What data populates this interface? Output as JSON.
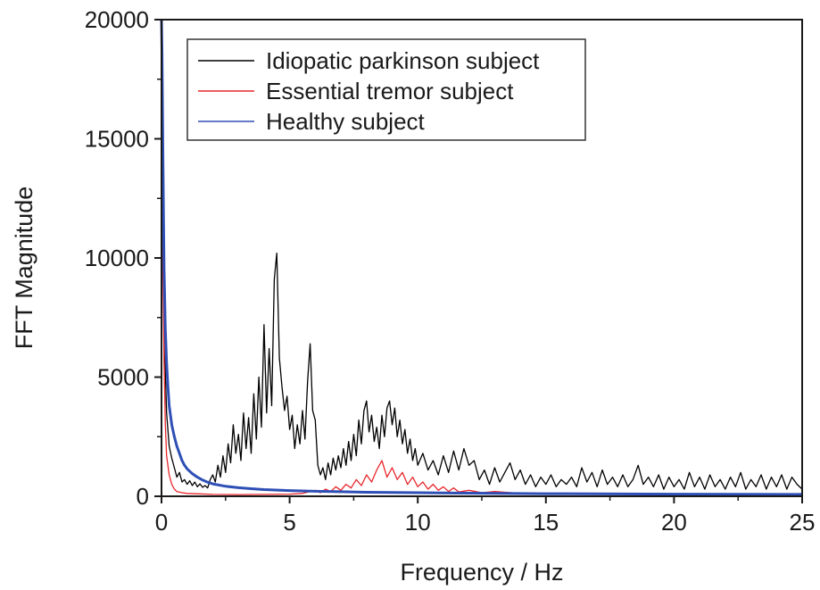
{
  "chart_data": {
    "type": "line",
    "title": "",
    "xlabel": "Frequency / Hz",
    "ylabel": "FFT Magnitude",
    "xlim": [
      0,
      25
    ],
    "ylim": [
      0,
      20000
    ],
    "x_ticks": [
      0,
      5,
      10,
      15,
      20,
      25
    ],
    "y_ticks": [
      0,
      5000,
      10000,
      15000,
      20000
    ],
    "x_tick_labels": [
      "0",
      "5",
      "10",
      "15",
      "20",
      "25"
    ],
    "y_tick_labels": [
      "0",
      "5000",
      "10000",
      "15000",
      "20000"
    ],
    "grid": false,
    "legend_position": "top-left",
    "series": [
      {
        "name": "Idiopatic parkinson subject",
        "color": "#000000",
        "points": [
          [
            0.0,
            20000
          ],
          [
            0.05,
            15500
          ],
          [
            0.1,
            9000
          ],
          [
            0.15,
            5200
          ],
          [
            0.2,
            3500
          ],
          [
            0.3,
            2100
          ],
          [
            0.4,
            1600
          ],
          [
            0.5,
            1200
          ],
          [
            0.6,
            800
          ],
          [
            0.7,
            1000
          ],
          [
            0.8,
            600
          ],
          [
            0.9,
            700
          ],
          [
            1.0,
            500
          ],
          [
            1.1,
            650
          ],
          [
            1.2,
            450
          ],
          [
            1.3,
            600
          ],
          [
            1.4,
            400
          ],
          [
            1.5,
            520
          ],
          [
            1.6,
            380
          ],
          [
            1.7,
            450
          ],
          [
            1.8,
            350
          ],
          [
            1.9,
            700
          ],
          [
            2.0,
            900
          ],
          [
            2.1,
            600
          ],
          [
            2.2,
            1300
          ],
          [
            2.3,
            800
          ],
          [
            2.4,
            1700
          ],
          [
            2.5,
            1000
          ],
          [
            2.6,
            2200
          ],
          [
            2.7,
            1400
          ],
          [
            2.8,
            3000
          ],
          [
            2.9,
            1800
          ],
          [
            3.0,
            2600
          ],
          [
            3.1,
            1500
          ],
          [
            3.2,
            3500
          ],
          [
            3.3,
            2000
          ],
          [
            3.4,
            3300
          ],
          [
            3.5,
            1800
          ],
          [
            3.6,
            4300
          ],
          [
            3.7,
            2400
          ],
          [
            3.8,
            5000
          ],
          [
            3.9,
            2900
          ],
          [
            4.0,
            7200
          ],
          [
            4.1,
            3500
          ],
          [
            4.2,
            6200
          ],
          [
            4.3,
            3800
          ],
          [
            4.4,
            9100
          ],
          [
            4.5,
            10200
          ],
          [
            4.6,
            5800
          ],
          [
            4.7,
            4600
          ],
          [
            4.8,
            3600
          ],
          [
            4.9,
            4200
          ],
          [
            5.0,
            2800
          ],
          [
            5.1,
            3400
          ],
          [
            5.2,
            2000
          ],
          [
            5.3,
            3000
          ],
          [
            5.4,
            2200
          ],
          [
            5.5,
            3600
          ],
          [
            5.6,
            2400
          ],
          [
            5.7,
            4800
          ],
          [
            5.8,
            6400
          ],
          [
            5.9,
            3600
          ],
          [
            6.0,
            3200
          ],
          [
            6.1,
            1300
          ],
          [
            6.2,
            900
          ],
          [
            6.3,
            1200
          ],
          [
            6.4,
            700
          ],
          [
            6.5,
            1400
          ],
          [
            6.6,
            900
          ],
          [
            6.7,
            1600
          ],
          [
            6.8,
            1100
          ],
          [
            6.9,
            1700
          ],
          [
            7.0,
            1200
          ],
          [
            7.1,
            2000
          ],
          [
            7.2,
            1300
          ],
          [
            7.3,
            2300
          ],
          [
            7.4,
            1500
          ],
          [
            7.5,
            2600
          ],
          [
            7.6,
            1700
          ],
          [
            7.7,
            3200
          ],
          [
            7.8,
            2200
          ],
          [
            7.9,
            3600
          ],
          [
            8.0,
            4000
          ],
          [
            8.1,
            2700
          ],
          [
            8.2,
            3400
          ],
          [
            8.3,
            2300
          ],
          [
            8.4,
            2900
          ],
          [
            8.5,
            2000
          ],
          [
            8.6,
            3400
          ],
          [
            8.7,
            2500
          ],
          [
            8.8,
            3700
          ],
          [
            8.9,
            4000
          ],
          [
            9.0,
            3000
          ],
          [
            9.1,
            3700
          ],
          [
            9.2,
            2500
          ],
          [
            9.3,
            3200
          ],
          [
            9.4,
            2200
          ],
          [
            9.5,
            2800
          ],
          [
            9.6,
            1800
          ],
          [
            9.7,
            2400
          ],
          [
            9.8,
            1500
          ],
          [
            9.9,
            2000
          ],
          [
            10.0,
            1300
          ],
          [
            10.2,
            1800
          ],
          [
            10.4,
            1100
          ],
          [
            10.6,
            1500
          ],
          [
            10.8,
            900
          ],
          [
            11.0,
            1700
          ],
          [
            11.2,
            1000
          ],
          [
            11.4,
            1900
          ],
          [
            11.6,
            1100
          ],
          [
            11.8,
            2000
          ],
          [
            12.0,
            1300
          ],
          [
            12.2,
            1500
          ],
          [
            12.4,
            700
          ],
          [
            12.6,
            1100
          ],
          [
            12.8,
            500
          ],
          [
            13.0,
            1200
          ],
          [
            13.2,
            600
          ],
          [
            13.4,
            1000
          ],
          [
            13.6,
            1400
          ],
          [
            13.8,
            700
          ],
          [
            14.0,
            1100
          ],
          [
            14.2,
            500
          ],
          [
            14.4,
            900
          ],
          [
            14.6,
            400
          ],
          [
            14.8,
            800
          ],
          [
            15.0,
            500
          ],
          [
            15.2,
            900
          ],
          [
            15.4,
            400
          ],
          [
            15.6,
            700
          ],
          [
            15.8,
            500
          ],
          [
            16.0,
            800
          ],
          [
            16.2,
            400
          ],
          [
            16.4,
            1200
          ],
          [
            16.6,
            600
          ],
          [
            16.8,
            1000
          ],
          [
            17.0,
            400
          ],
          [
            17.2,
            1100
          ],
          [
            17.4,
            500
          ],
          [
            17.6,
            800
          ],
          [
            17.8,
            400
          ],
          [
            18.0,
            900
          ],
          [
            18.2,
            400
          ],
          [
            18.4,
            700
          ],
          [
            18.6,
            1300
          ],
          [
            18.8,
            500
          ],
          [
            19.0,
            800
          ],
          [
            19.2,
            400
          ],
          [
            19.4,
            900
          ],
          [
            19.6,
            300
          ],
          [
            19.8,
            800
          ],
          [
            20.0,
            400
          ],
          [
            20.2,
            700
          ],
          [
            20.4,
            300
          ],
          [
            20.6,
            1000
          ],
          [
            20.8,
            400
          ],
          [
            21.0,
            800
          ],
          [
            21.2,
            300
          ],
          [
            21.4,
            900
          ],
          [
            21.6,
            400
          ],
          [
            21.8,
            700
          ],
          [
            22.0,
            300
          ],
          [
            22.2,
            800
          ],
          [
            22.4,
            400
          ],
          [
            22.6,
            1000
          ],
          [
            22.8,
            300
          ],
          [
            23.0,
            700
          ],
          [
            23.2,
            400
          ],
          [
            23.4,
            900
          ],
          [
            23.6,
            300
          ],
          [
            23.8,
            800
          ],
          [
            24.0,
            400
          ],
          [
            24.2,
            900
          ],
          [
            24.4,
            300
          ],
          [
            24.6,
            800
          ],
          [
            24.8,
            500
          ],
          [
            25.0,
            300
          ]
        ]
      },
      {
        "name": "Essential tremor subject",
        "color": "#e8262b",
        "points": [
          [
            0.0,
            20000
          ],
          [
            0.05,
            10000
          ],
          [
            0.1,
            5600
          ],
          [
            0.15,
            3000
          ],
          [
            0.2,
            1700
          ],
          [
            0.3,
            900
          ],
          [
            0.4,
            500
          ],
          [
            0.5,
            300
          ],
          [
            0.6,
            200
          ],
          [
            0.8,
            150
          ],
          [
            1.0,
            120
          ],
          [
            1.5,
            100
          ],
          [
            2.0,
            80
          ],
          [
            3.0,
            70
          ],
          [
            4.0,
            80
          ],
          [
            5.0,
            90
          ],
          [
            5.5,
            120
          ],
          [
            6.0,
            250
          ],
          [
            6.2,
            150
          ],
          [
            6.4,
            300
          ],
          [
            6.6,
            200
          ],
          [
            6.8,
            400
          ],
          [
            7.0,
            250
          ],
          [
            7.2,
            500
          ],
          [
            7.4,
            350
          ],
          [
            7.6,
            700
          ],
          [
            7.8,
            450
          ],
          [
            8.0,
            900
          ],
          [
            8.2,
            600
          ],
          [
            8.4,
            1100
          ],
          [
            8.6,
            1500
          ],
          [
            8.8,
            800
          ],
          [
            9.0,
            1200
          ],
          [
            9.2,
            700
          ],
          [
            9.4,
            1000
          ],
          [
            9.6,
            500
          ],
          [
            9.8,
            800
          ],
          [
            10.0,
            400
          ],
          [
            10.2,
            600
          ],
          [
            10.4,
            300
          ],
          [
            10.6,
            500
          ],
          [
            10.8,
            250
          ],
          [
            11.0,
            400
          ],
          [
            11.2,
            200
          ],
          [
            11.4,
            350
          ],
          [
            11.6,
            180
          ],
          [
            12.0,
            250
          ],
          [
            12.5,
            150
          ],
          [
            13.0,
            200
          ],
          [
            14.0,
            120
          ],
          [
            15.0,
            100
          ],
          [
            16.0,
            90
          ],
          [
            18.0,
            80
          ],
          [
            20.0,
            80
          ],
          [
            22.0,
            70
          ],
          [
            25.0,
            70
          ]
        ]
      },
      {
        "name": "Healthy subject",
        "color": "#2e4fb5",
        "points": [
          [
            0.0,
            20000
          ],
          [
            0.02,
            18500
          ],
          [
            0.05,
            15000
          ],
          [
            0.08,
            11500
          ],
          [
            0.1,
            9500
          ],
          [
            0.15,
            7000
          ],
          [
            0.2,
            5600
          ],
          [
            0.25,
            4600
          ],
          [
            0.3,
            3800
          ],
          [
            0.4,
            3000
          ],
          [
            0.5,
            2500
          ],
          [
            0.6,
            2100
          ],
          [
            0.7,
            1800
          ],
          [
            0.8,
            1500
          ],
          [
            0.9,
            1300
          ],
          [
            1.0,
            1150
          ],
          [
            1.2,
            950
          ],
          [
            1.4,
            800
          ],
          [
            1.6,
            680
          ],
          [
            1.8,
            590
          ],
          [
            2.0,
            520
          ],
          [
            2.5,
            420
          ],
          [
            3.0,
            360
          ],
          [
            3.5,
            320
          ],
          [
            4.0,
            280
          ],
          [
            5.0,
            240
          ],
          [
            6.0,
            210
          ],
          [
            7.0,
            190
          ],
          [
            8.0,
            170
          ],
          [
            10.0,
            150
          ],
          [
            12.0,
            130
          ],
          [
            15.0,
            110
          ],
          [
            20.0,
            90
          ],
          [
            25.0,
            80
          ]
        ]
      }
    ]
  }
}
